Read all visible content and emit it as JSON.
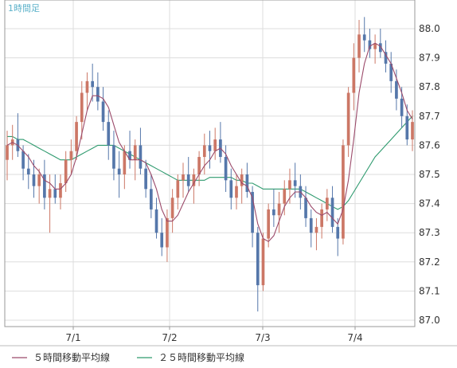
{
  "chart_data": {
    "type": "candlestick",
    "title": "1時間足",
    "x_tick_labels": [
      "7/1",
      "7/2",
      "7/3",
      "7/4"
    ],
    "y_ticks": [
      "88.0",
      "87.9",
      "87.8",
      "87.7",
      "87.6",
      "87.5",
      "87.4",
      "87.3",
      "87.2",
      "87.1",
      "87.0"
    ],
    "ylim": [
      87.0,
      88.0
    ],
    "grid": true,
    "legend_position": "bottom",
    "colors": {
      "up": "#cc7766",
      "down": "#5577aa",
      "ma5": "#9b4a6a",
      "ma25": "#2e9a6e",
      "grid": "#dddddd",
      "border": "#999999"
    },
    "series": [
      {
        "name": "５時間移動平均線",
        "key": "ma5"
      },
      {
        "name": "２５時間移動平均線",
        "key": "ma25"
      }
    ],
    "candles": [
      [
        87.55,
        87.65,
        87.48,
        87.6
      ],
      [
        87.6,
        87.67,
        87.55,
        87.62
      ],
      [
        87.62,
        87.71,
        87.56,
        87.58
      ],
      [
        87.58,
        87.6,
        87.48,
        87.52
      ],
      [
        87.52,
        87.57,
        87.45,
        87.5
      ],
      [
        87.5,
        87.55,
        87.42,
        87.46
      ],
      [
        87.46,
        87.52,
        87.4,
        87.5
      ],
      [
        87.5,
        87.55,
        87.38,
        87.42
      ],
      [
        87.42,
        87.5,
        87.3,
        87.45
      ],
      [
        87.45,
        87.5,
        87.4,
        87.42
      ],
      [
        87.42,
        87.5,
        87.38,
        87.47
      ],
      [
        87.47,
        87.58,
        87.44,
        87.55
      ],
      [
        87.55,
        87.62,
        87.5,
        87.58
      ],
      [
        87.58,
        87.7,
        87.55,
        87.68
      ],
      [
        87.68,
        87.82,
        87.62,
        87.78
      ],
      [
        87.78,
        87.85,
        87.72,
        87.82
      ],
      [
        87.82,
        87.88,
        87.75,
        87.8
      ],
      [
        87.8,
        87.85,
        87.72,
        87.75
      ],
      [
        87.75,
        87.8,
        87.65,
        87.68
      ],
      [
        87.68,
        87.72,
        87.55,
        87.6
      ],
      [
        87.6,
        87.65,
        87.48,
        87.52
      ],
      [
        87.52,
        87.58,
        87.42,
        87.5
      ],
      [
        87.5,
        87.6,
        87.45,
        87.58
      ],
      [
        87.58,
        87.65,
        87.52,
        87.55
      ],
      [
        87.55,
        87.62,
        87.48,
        87.6
      ],
      [
        87.6,
        87.66,
        87.5,
        87.52
      ],
      [
        87.52,
        87.55,
        87.42,
        87.45
      ],
      [
        87.45,
        87.5,
        87.35,
        87.38
      ],
      [
        87.38,
        87.42,
        87.28,
        87.3
      ],
      [
        87.3,
        87.35,
        87.22,
        87.25
      ],
      [
        87.25,
        87.38,
        87.2,
        87.35
      ],
      [
        87.35,
        87.45,
        87.3,
        87.42
      ],
      [
        87.42,
        87.5,
        87.38,
        87.48
      ],
      [
        87.48,
        87.54,
        87.42,
        87.5
      ],
      [
        87.5,
        87.56,
        87.44,
        87.46
      ],
      [
        87.46,
        87.52,
        87.4,
        87.5
      ],
      [
        87.5,
        87.58,
        87.46,
        87.56
      ],
      [
        87.56,
        87.64,
        87.5,
        87.6
      ],
      [
        87.6,
        87.65,
        87.52,
        87.58
      ],
      [
        87.58,
        87.66,
        87.55,
        87.62
      ],
      [
        87.62,
        87.68,
        87.54,
        87.56
      ],
      [
        87.56,
        87.6,
        87.44,
        87.48
      ],
      [
        87.48,
        87.52,
        87.38,
        87.42
      ],
      [
        87.42,
        87.5,
        87.38,
        87.46
      ],
      [
        87.46,
        87.52,
        87.4,
        87.5
      ],
      [
        87.5,
        87.54,
        87.42,
        87.44
      ],
      [
        87.44,
        87.46,
        87.25,
        87.3
      ],
      [
        87.3,
        87.32,
        87.03,
        87.12
      ],
      [
        87.12,
        87.3,
        87.1,
        87.28
      ],
      [
        87.28,
        87.4,
        87.25,
        87.38
      ],
      [
        87.38,
        87.45,
        87.32,
        87.36
      ],
      [
        87.36,
        87.44,
        87.3,
        87.4
      ],
      [
        87.4,
        87.48,
        87.36,
        87.45
      ],
      [
        87.45,
        87.52,
        87.4,
        87.48
      ],
      [
        87.48,
        87.54,
        87.42,
        87.46
      ],
      [
        87.46,
        87.5,
        87.38,
        87.42
      ],
      [
        87.42,
        87.46,
        87.32,
        87.35
      ],
      [
        87.35,
        87.38,
        87.25,
        87.3
      ],
      [
        87.3,
        87.35,
        87.24,
        87.32
      ],
      [
        87.32,
        87.4,
        87.28,
        87.38
      ],
      [
        87.38,
        87.45,
        87.34,
        87.42
      ],
      [
        87.42,
        87.46,
        87.3,
        87.32
      ],
      [
        87.32,
        87.35,
        87.22,
        87.28
      ],
      [
        87.28,
        87.62,
        87.26,
        87.6
      ],
      [
        87.6,
        87.8,
        87.56,
        87.78
      ],
      [
        87.78,
        87.95,
        87.72,
        87.9
      ],
      [
        87.9,
        88.03,
        87.85,
        87.98
      ],
      [
        87.98,
        88.04,
        87.92,
        87.96
      ],
      [
        87.96,
        88.0,
        87.9,
        87.93
      ],
      [
        87.93,
        87.98,
        87.88,
        87.95
      ],
      [
        87.95,
        88.0,
        87.9,
        87.92
      ],
      [
        87.92,
        87.96,
        87.85,
        87.88
      ],
      [
        87.88,
        87.92,
        87.78,
        87.82
      ],
      [
        87.82,
        87.86,
        87.72,
        87.76
      ],
      [
        87.76,
        87.8,
        87.66,
        87.7
      ],
      [
        87.7,
        87.74,
        87.6,
        87.62
      ],
      [
        87.62,
        87.72,
        87.58,
        87.68
      ]
    ],
    "ma5": [
      87.6,
      87.61,
      87.6,
      87.58,
      87.56,
      87.53,
      87.51,
      87.48,
      87.47,
      87.45,
      87.45,
      87.47,
      87.5,
      87.56,
      87.64,
      87.72,
      87.77,
      87.77,
      87.76,
      87.73,
      87.67,
      87.61,
      87.58,
      87.55,
      87.55,
      87.55,
      87.54,
      87.5,
      87.45,
      87.38,
      87.34,
      87.34,
      87.36,
      87.4,
      87.44,
      87.47,
      87.5,
      87.53,
      87.55,
      87.58,
      87.59,
      87.57,
      87.53,
      87.5,
      87.47,
      87.46,
      87.42,
      87.33,
      87.28,
      87.27,
      87.29,
      87.34,
      87.39,
      87.42,
      87.44,
      87.44,
      87.42,
      87.39,
      87.37,
      87.36,
      87.37,
      87.35,
      87.33,
      87.38,
      87.48,
      87.62,
      87.78,
      87.88,
      87.94,
      87.95,
      87.94,
      87.91,
      87.88,
      87.83,
      87.78,
      87.72,
      87.69
    ],
    "ma25": [
      87.63,
      87.63,
      87.62,
      87.62,
      87.61,
      87.6,
      87.59,
      87.58,
      87.57,
      87.56,
      87.55,
      87.55,
      87.55,
      87.56,
      87.57,
      87.58,
      87.59,
      87.6,
      87.6,
      87.6,
      87.6,
      87.59,
      87.58,
      87.57,
      87.56,
      87.55,
      87.54,
      87.53,
      87.52,
      87.51,
      87.5,
      87.49,
      87.48,
      87.48,
      87.48,
      87.48,
      87.48,
      87.48,
      87.49,
      87.49,
      87.49,
      87.49,
      87.49,
      87.48,
      87.48,
      87.47,
      87.47,
      87.46,
      87.45,
      87.45,
      87.45,
      87.45,
      87.45,
      87.45,
      87.45,
      87.45,
      87.44,
      87.43,
      87.42,
      87.41,
      87.4,
      87.39,
      87.38,
      87.39,
      87.41,
      87.44,
      87.47,
      87.5,
      87.53,
      87.56,
      87.58,
      87.6,
      87.62,
      87.64,
      87.66,
      87.68,
      87.7
    ]
  }
}
